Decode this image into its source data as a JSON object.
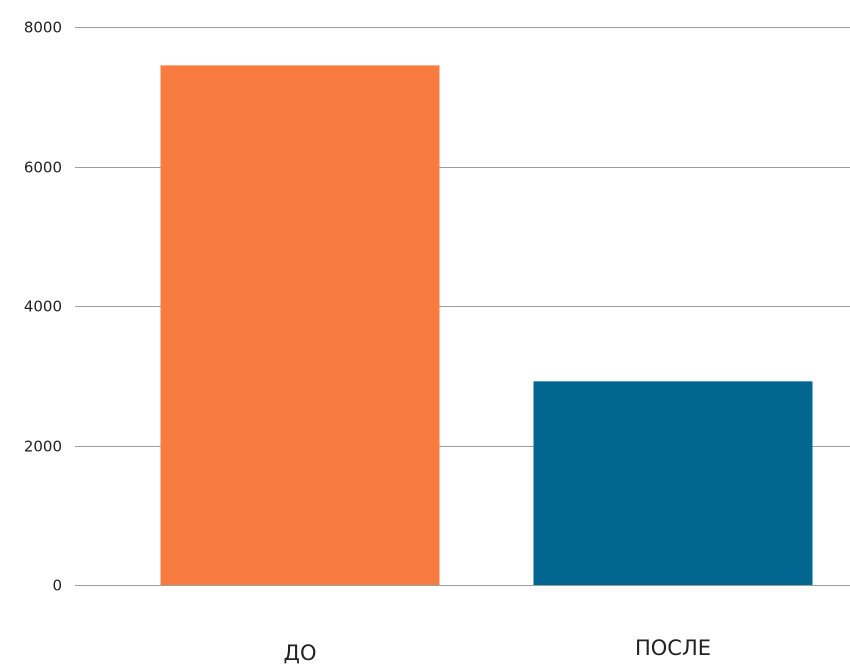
{
  "chart_data": {
    "type": "bar",
    "categories": [
      "ДО",
      "ПОСЛЕ"
    ],
    "values": [
      7450,
      2920
    ],
    "colors": [
      "#f87c40",
      "#026691"
    ],
    "ylim": [
      0,
      8000
    ],
    "yticks": [
      0,
      2000,
      4000,
      6000,
      8000
    ],
    "grid": true,
    "title": "",
    "xlabel": "",
    "ylabel": ""
  }
}
